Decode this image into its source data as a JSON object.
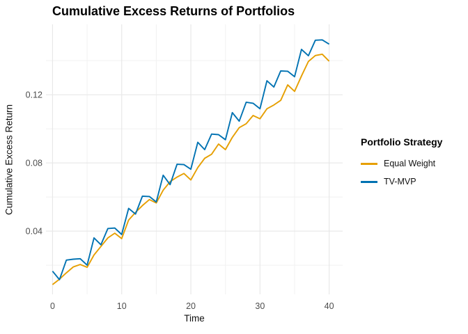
{
  "chart_data": {
    "type": "line",
    "title": "Cumulative Excess Returns of Portfolios",
    "xlabel": "Time",
    "ylabel": "Cumulative Excess Return",
    "legend_title": "Portfolio Strategy",
    "legend_position": "right",
    "grid": true,
    "background_color": "#FFFFFF",
    "grid_major_color": "#E8E8E8",
    "grid_minor_color": "#F1F1F1",
    "tick_label_color": "#4D4D4D",
    "x_domain": [
      -0.95,
      41.95
    ],
    "y_domain": [
      0.0029,
      0.1613
    ],
    "x_ticks": [
      0,
      10,
      20,
      30,
      40
    ],
    "x_tick_labels": [
      "0",
      "10",
      "20",
      "30",
      "40"
    ],
    "x_minor": [
      5,
      15,
      25,
      35
    ],
    "y_ticks": [
      0.04,
      0.08,
      0.12
    ],
    "y_tick_labels": [
      "0.04",
      "0.08",
      "0.12"
    ],
    "y_minor": [
      0.02,
      0.06,
      0.1,
      0.14
    ],
    "x": [
      0,
      1,
      2,
      3,
      4,
      5,
      6,
      7,
      8,
      9,
      10,
      11,
      12,
      13,
      14,
      15,
      16,
      17,
      18,
      19,
      20,
      21,
      22,
      23,
      24,
      25,
      26,
      27,
      28,
      29,
      30,
      31,
      32,
      33,
      34,
      35,
      36,
      37,
      38,
      39,
      40
    ],
    "series": [
      {
        "name": "Equal Weight",
        "color": "#E69F00",
        "values": [
          0.0086,
          0.0118,
          0.0155,
          0.019,
          0.0204,
          0.0188,
          0.026,
          0.031,
          0.036,
          0.0388,
          0.0356,
          0.0465,
          0.051,
          0.055,
          0.0585,
          0.0565,
          0.064,
          0.069,
          0.0717,
          0.0738,
          0.07,
          0.0773,
          0.0827,
          0.0851,
          0.0911,
          0.0878,
          0.095,
          0.1007,
          0.103,
          0.1078,
          0.1059,
          0.1118,
          0.114,
          0.1167,
          0.1258,
          0.122,
          0.131,
          0.1395,
          0.143,
          0.1438,
          0.1397
        ]
      },
      {
        "name": "TV-MVP",
        "color": "#0072B2",
        "values": [
          0.0165,
          0.0115,
          0.023,
          0.0235,
          0.0238,
          0.02,
          0.036,
          0.032,
          0.0415,
          0.0418,
          0.038,
          0.0533,
          0.05,
          0.0605,
          0.0603,
          0.0571,
          0.0728,
          0.0673,
          0.0792,
          0.079,
          0.0763,
          0.0921,
          0.0878,
          0.0969,
          0.0966,
          0.0936,
          0.1095,
          0.1045,
          0.1156,
          0.115,
          0.1118,
          0.1282,
          0.1245,
          0.134,
          0.1338,
          0.1306,
          0.1466,
          0.1429,
          0.152,
          0.1522,
          0.1497
        ]
      }
    ]
  }
}
